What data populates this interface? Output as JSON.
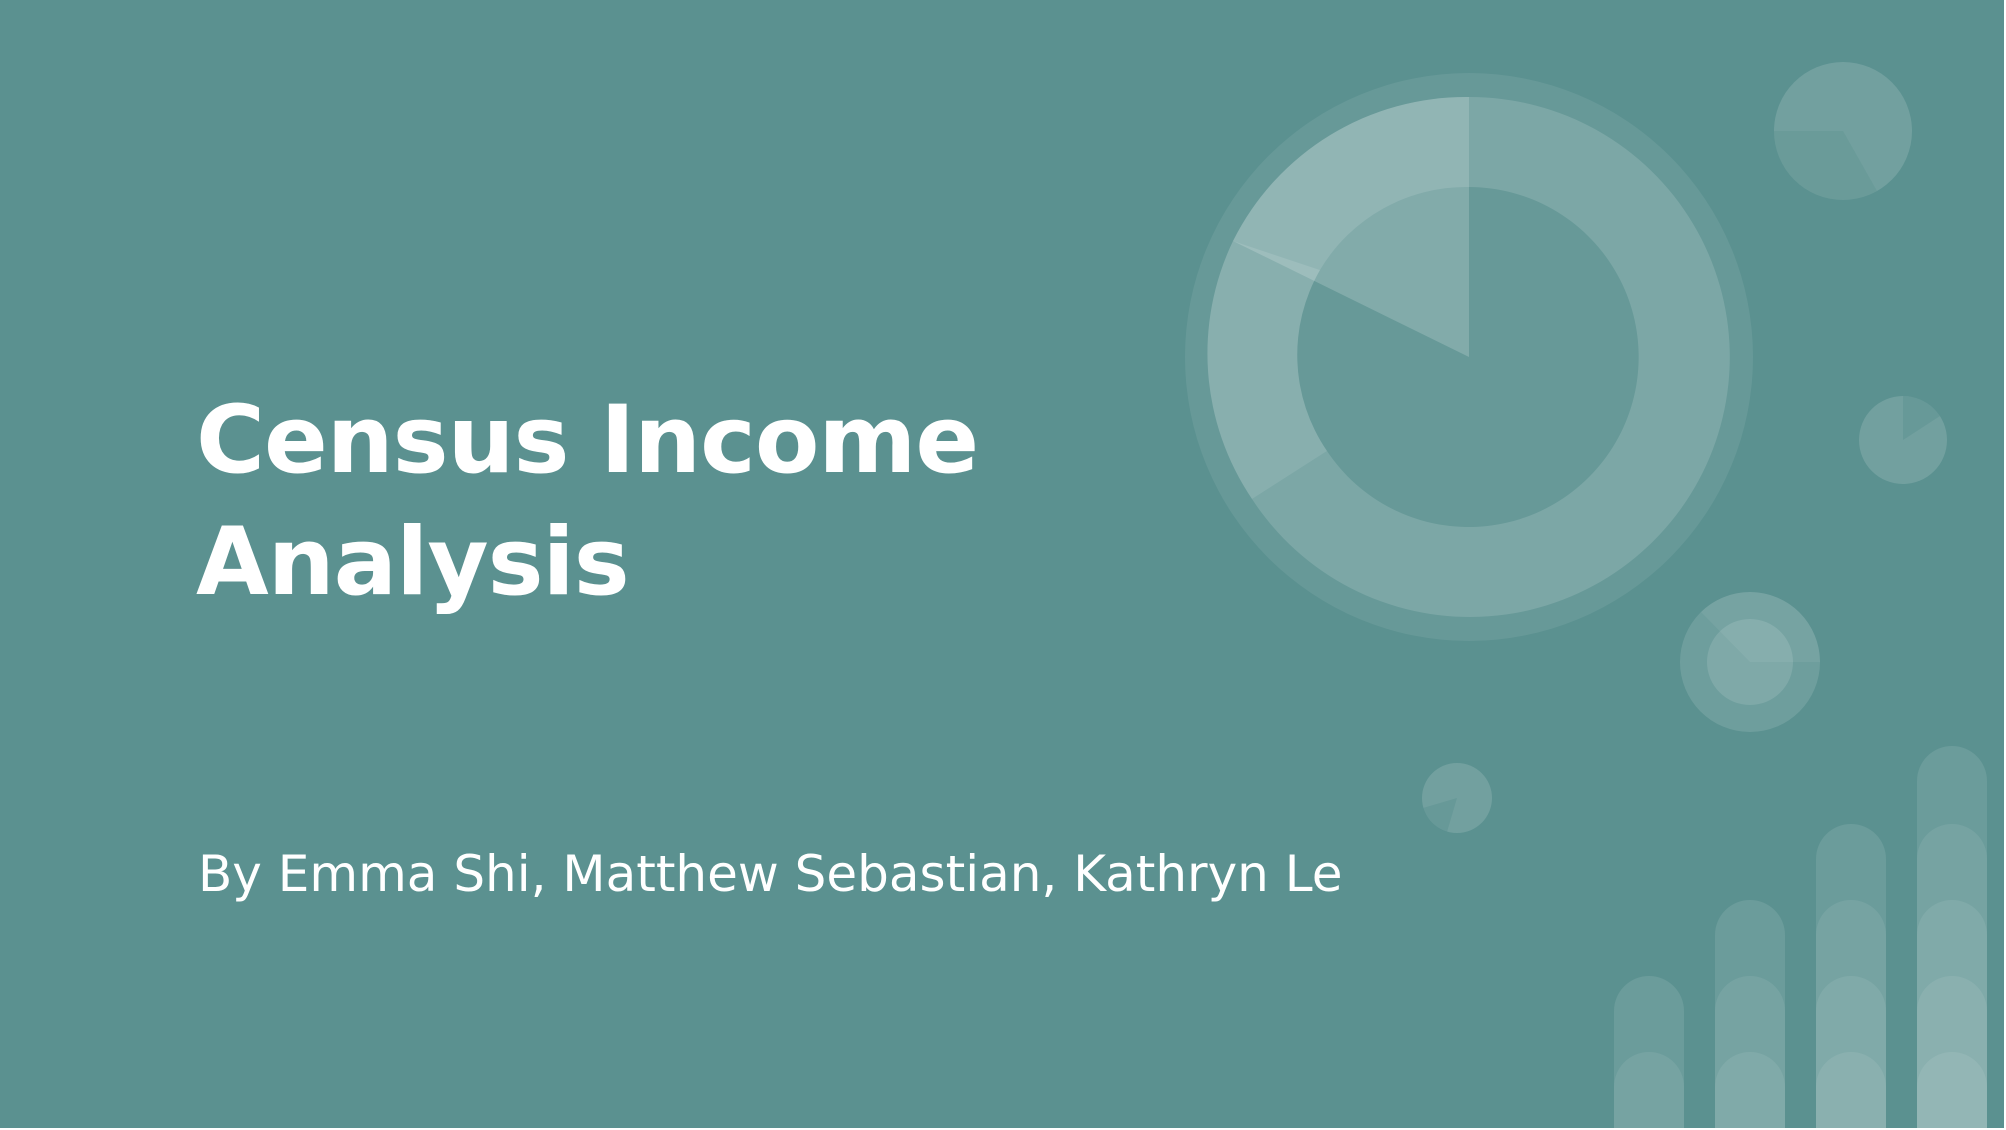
{
  "slide": {
    "title_line_1": "Census Income",
    "title_line_2": "Analysis",
    "subtitle": "By Emma Shi, Matthew Sebastian, Kathryn Le"
  },
  "colors": {
    "background": "#5b9190",
    "text": "#ffffff",
    "decor_light": "#ffffff"
  },
  "decorations": {
    "icons": [
      "large-donut-chart-icon",
      "small-pie-chart-icon",
      "tiny-pie-chart-icon",
      "ring-pie-chart-icon",
      "bar-chart-icon"
    ]
  }
}
